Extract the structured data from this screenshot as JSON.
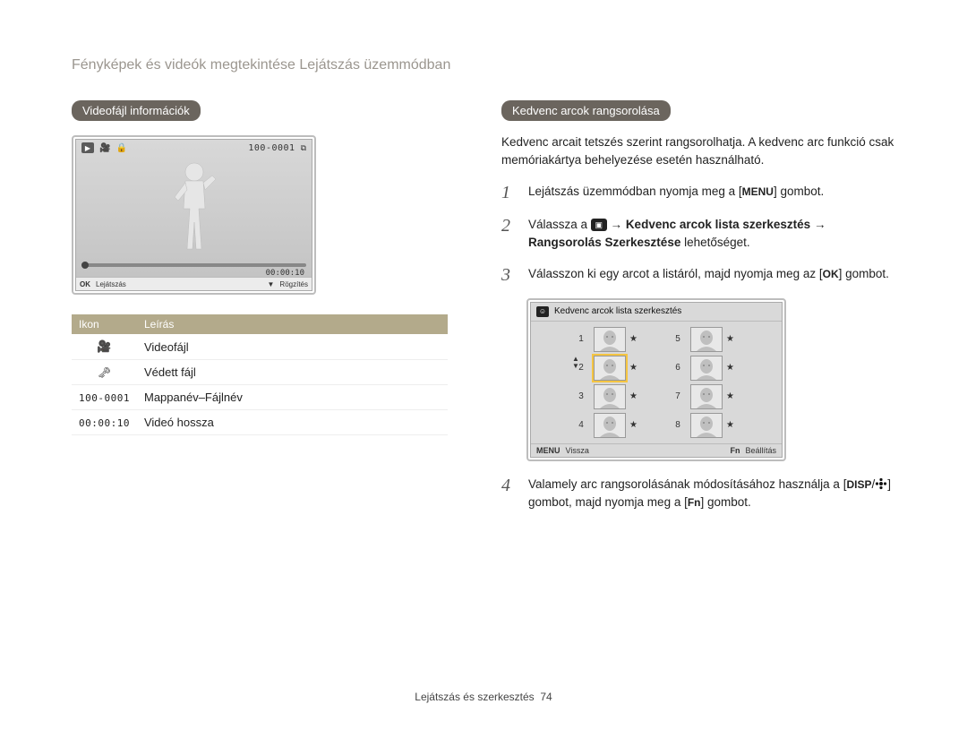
{
  "header": "Fényképek és videók megtekintése Lejátszás üzemmódban",
  "left": {
    "pill": "Videofájl információk",
    "lcd": {
      "file_id": "100-0001",
      "time": "00:00:10",
      "bottom_ok": "OK",
      "bottom_play": "Lejátszás",
      "bottom_down": "▼",
      "bottom_rec": "Rögzítés"
    },
    "table": {
      "head_icon": "Ikon",
      "head_desc": "Leírás",
      "rows": [
        {
          "icon_type": "video",
          "desc": "Videofájl"
        },
        {
          "icon_type": "lock",
          "desc": "Védett fájl"
        },
        {
          "icon_type": "fileid",
          "icon_text": "100-0001",
          "desc": "Mappanév–Fájlnév"
        },
        {
          "icon_type": "time",
          "icon_text": "00:00:10",
          "desc": "Videó hossza"
        }
      ]
    }
  },
  "right": {
    "pill": "Kedvenc arcok rangsorolása",
    "intro": "Kedvenc arcait tetszés szerint rangsorolhatja. A kedvenc arc funkció csak memóriakártya behelyezése esetén használható.",
    "steps": {
      "s1a": "Lejátszás üzemmódban nyomja meg a [",
      "menu_label": "MENU",
      "s1b": "] gombot.",
      "s2a": "Válassza a ",
      "s2arrow": " → ",
      "s2b": "Kedvenc arcok lista szerkesztés",
      "s2c": "Rangsorolás Szerkesztése",
      "s2d": " lehetőséget.",
      "s3a": "Válasszon ki egy arcot a listáról, majd nyomja meg az [",
      "ok_label": "OK",
      "s3b": "] gombot.",
      "s4a": "Valamely arc rangsorolásának módosításához használja a [",
      "disp_label": "DISP",
      "s4b": "/",
      "s4c": "] gombot, majd nyomja meg a [",
      "fn_label": "Fn",
      "s4d": "] gombot."
    },
    "face_lcd": {
      "title": "Kedvenc arcok lista szerkesztés",
      "ranks_left": [
        "1",
        "2",
        "3",
        "4"
      ],
      "ranks_right": [
        "5",
        "6",
        "7",
        "8"
      ],
      "bottom_menu": "MENU",
      "bottom_back": "Vissza",
      "bottom_fn": "Fn",
      "bottom_set": "Beállítás"
    }
  },
  "footer": {
    "section": "Lejátszás és szerkesztés",
    "page": "74"
  }
}
